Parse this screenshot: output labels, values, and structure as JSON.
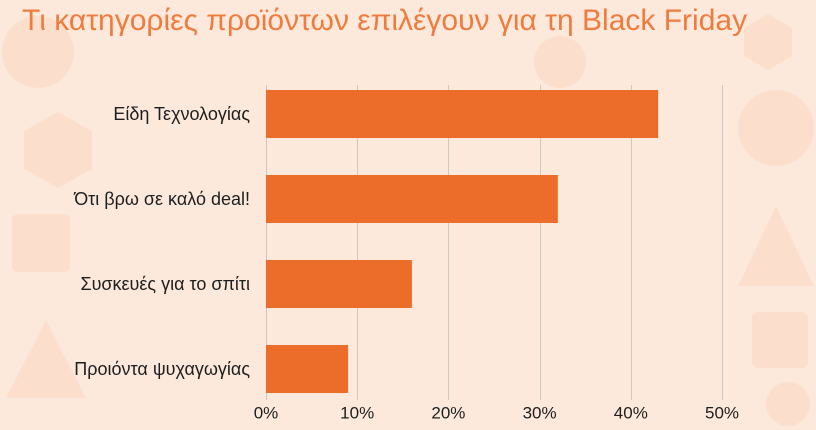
{
  "colors": {
    "background": "#fde9dc",
    "background_shape": "#fbdfcc",
    "title": "#ef7b3d",
    "bar": "#ec6d2a",
    "grid": "#cdc8c4",
    "text": "#1e1e1e"
  },
  "chart_data": {
    "type": "bar",
    "orientation": "horizontal",
    "title": "Τι κατηγορίες προϊόντων επιλέγουν για τη Black Friday",
    "categories": [
      "Είδη Τεχνολογίας",
      "Ότι βρω σε καλό deal!",
      "Συσκευές για το σπίτι",
      "Προιόντα ψυχαγωγίας"
    ],
    "values": [
      43,
      32,
      16,
      9
    ],
    "xlim": [
      0,
      50
    ],
    "xticks": [
      0,
      10,
      20,
      30,
      40,
      50
    ],
    "xtick_labels": [
      "0%",
      "10%",
      "20%",
      "30%",
      "40%",
      "50%"
    ],
    "grid": "vertical",
    "legend": "none"
  }
}
